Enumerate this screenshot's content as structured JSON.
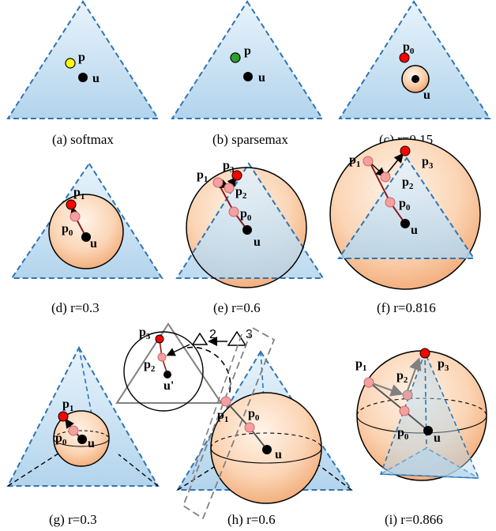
{
  "colors": {
    "triangle_stroke": "#2e75b6",
    "triangle_fill_top": "#e6f1fa",
    "triangle_fill_bottom": "#b4d6ee",
    "sphere_fill_light": "#fde9d9",
    "sphere_fill_dark": "#f4a46e",
    "point_yellow": "#ffff00",
    "point_green": "#2ca02c",
    "point_red": "#ff0000",
    "point_pink": "#f4a0a0",
    "point_black": "#000000",
    "arrow_gray": "#808080"
  },
  "panels": {
    "a": {
      "caption": "(a) softmax",
      "point_p": "p",
      "point_u": "u"
    },
    "b": {
      "caption": "(b) sparsemax",
      "point_p": "p",
      "point_u": "u"
    },
    "c": {
      "caption": "(c) r=0.15",
      "point_p": "p",
      "sub_p": "0",
      "point_u": "u"
    },
    "d": {
      "caption": "(d) r=0.3",
      "p1": "p",
      "p1_sub": "1",
      "p0": "p",
      "p0_sub": "0",
      "u": "u"
    },
    "e": {
      "caption": "(e) r=0.6",
      "p1": "p",
      "p1_sub": "1",
      "p2": "p",
      "p2_sub": "2",
      "p3": "p",
      "p3_sub": "3",
      "p0": "p",
      "p0_sub": "0",
      "u": "u"
    },
    "f": {
      "caption": "(f) r=0.816",
      "p1": "p",
      "p1_sub": "1",
      "p2": "p",
      "p2_sub": "2",
      "p3": "p",
      "p3_sub": "3",
      "p0": "p",
      "p0_sub": "0",
      "u": "u"
    },
    "g": {
      "caption": "(g) r=0.3",
      "p1": "p",
      "p1_sub": "1",
      "p0": "p",
      "p0_sub": "0",
      "u": "u"
    },
    "h": {
      "caption": "(h) r=0.6",
      "p1": "p",
      "p1_sub": "1",
      "p0": "p",
      "p0_sub": "0",
      "u": "u"
    },
    "i": {
      "caption": "(i) r=0.866",
      "p1": "p",
      "p1_sub": "1",
      "p2": "p",
      "p2_sub": "2",
      "p3": "p",
      "p3_sub": "3",
      "p0": "p",
      "p0_sub": "0",
      "u": "u"
    }
  },
  "inset": {
    "p3": "p",
    "p3_sub": "3",
    "p2": "p",
    "p2_sub": "2",
    "u_prime": "u'",
    "triangle_2": "2",
    "triangle_3": "3"
  }
}
